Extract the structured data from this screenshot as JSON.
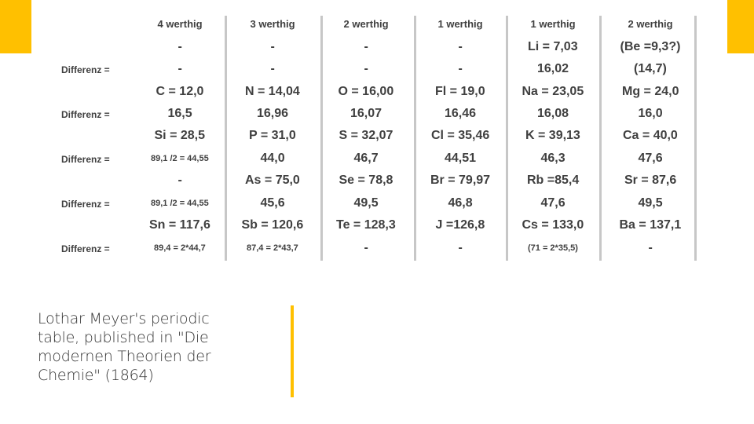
{
  "colors": {
    "accent": "#FFC000",
    "table_rule": "#C7C7C7",
    "table_text": "#404040"
  },
  "table": {
    "headers": [
      "4 werthig",
      "3 werthig",
      "2 werthig",
      "1 werthig",
      "1 werthig",
      "2 werthig"
    ],
    "row_label": "Differenz =",
    "rows": [
      {
        "cells": [
          "-",
          "-",
          "-",
          "-",
          "Li  =  7,03",
          "(Be =9,3?)"
        ],
        "label": false
      },
      {
        "cells": [
          "-",
          "-",
          "-",
          "-",
          "16,02",
          "(14,7)"
        ],
        "label": true
      },
      {
        "cells": [
          "C = 12,0",
          "N = 14,04",
          "O = 16,00",
          "Fl = 19,0",
          "Na = 23,05",
          "Mg = 24,0"
        ],
        "label": false
      },
      {
        "cells": [
          "16,5",
          "16,96",
          "16,07",
          "16,46",
          "16,08",
          "16,0"
        ],
        "label": true
      },
      {
        "cells": [
          "Si = 28,5",
          "P = 31,0",
          "S = 32,07",
          "Cl = 35,46",
          "K = 39,13",
          "Ca = 40,0"
        ],
        "label": false
      },
      {
        "cells": [
          "89,1 /2 = 44,55",
          "44,0",
          "46,7",
          "44,51",
          "46,3",
          "47,6"
        ],
        "label": true
      },
      {
        "cells": [
          "-",
          "As = 75,0",
          "Se = 78,8",
          "Br = 79,97",
          "Rb =85,4",
          "Sr = 87,6"
        ],
        "label": false
      },
      {
        "cells": [
          "89,1 /2 = 44,55",
          "45,6",
          "49,5",
          "46,8",
          "47,6",
          "49,5"
        ],
        "label": true
      },
      {
        "cells": [
          "Sn = 117,6",
          "Sb = 120,6",
          "Te = 128,3",
          "J =126,8",
          "Cs = 133,0",
          "Ba = 137,1"
        ],
        "label": false
      },
      {
        "cells": [
          "89,4 = 2*44,7",
          "87,4 = 2*43,7",
          "-",
          "-",
          "(71 = 2*35,5)",
          "-"
        ],
        "label": true
      }
    ]
  },
  "caption": "Lothar Meyer's periodic table, published in \"Die modernen Theorien der Chemie\" (1864)"
}
